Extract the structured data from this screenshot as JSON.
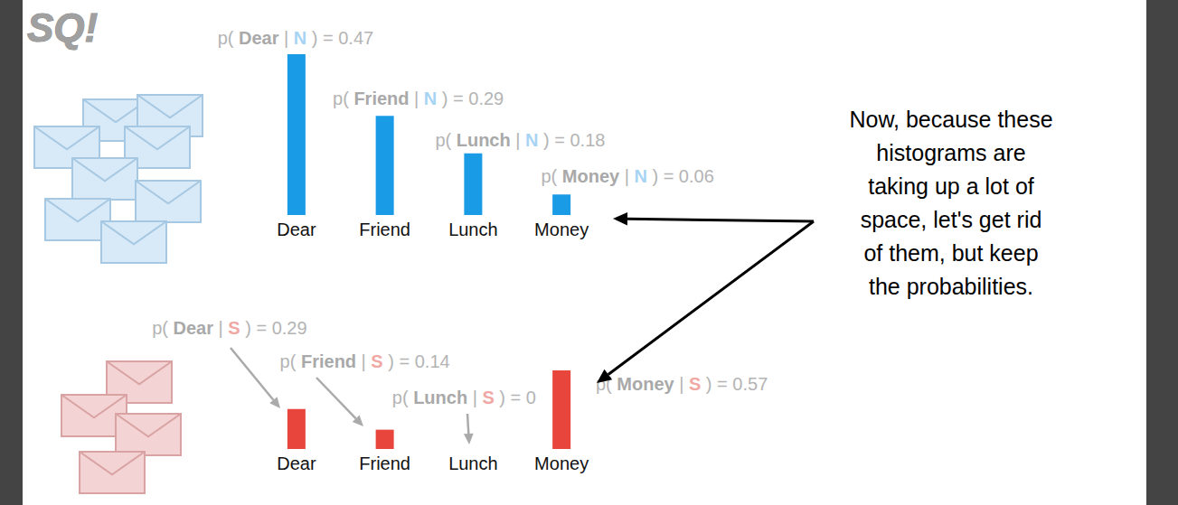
{
  "chart_data": [
    {
      "type": "bar",
      "categories": [
        "Dear",
        "Friend",
        "Lunch",
        "Money"
      ],
      "values": [
        0.47,
        0.29,
        0.18,
        0.06
      ],
      "value_labels": [
        "p( Dear | N ) = 0.47",
        "p( Friend | N ) = 0.29",
        "p( Lunch | N ) = 0.18",
        "p( Money | N ) = 0.06"
      ],
      "color": "#1a9be6",
      "ylim": [
        0,
        0.47
      ],
      "grid": false,
      "data_labels": true,
      "tick_labels": "x",
      "annotation": [
        "Now, because these",
        "histograms are",
        "taking up a lot of",
        "space, let's get rid",
        "of them, but keep",
        "the probabilities."
      ]
    },
    {
      "type": "bar",
      "categories": [
        "Dear",
        "Friend",
        "Lunch",
        "Money"
      ],
      "values": [
        0.29,
        0.14,
        0,
        0.57
      ],
      "value_labels": [
        "p( Dear | S ) = 0.29",
        "p( Friend | S ) = 0.14",
        "p( Lunch | S ) = 0",
        "p( Money | S ) = 0.57"
      ],
      "color": "#e8453c",
      "ylim": [
        0,
        0.57
      ],
      "grid": false,
      "data_labels": true,
      "tick_labels": "x"
    }
  ],
  "logo": "SQ!"
}
